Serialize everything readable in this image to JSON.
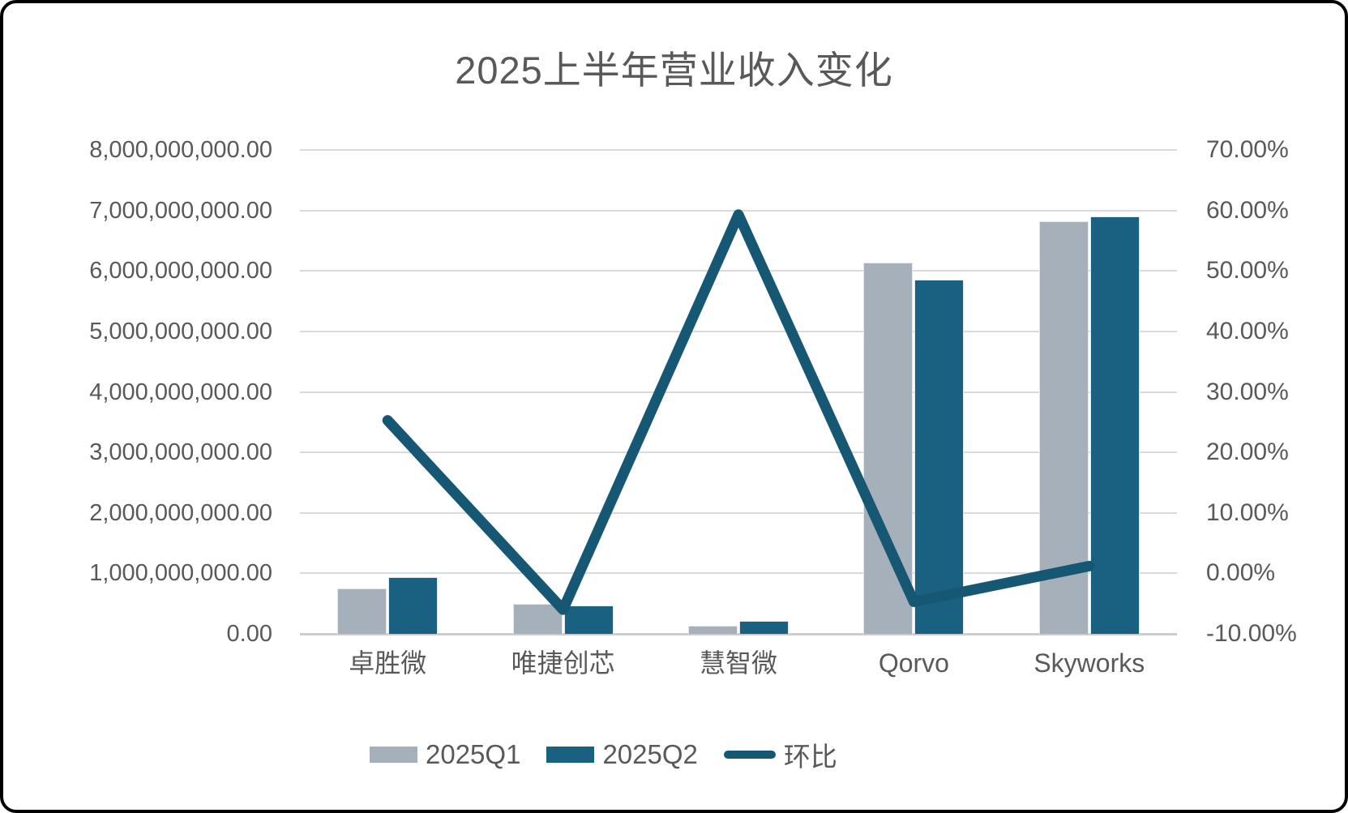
{
  "chart_data": {
    "type": "bar",
    "subtype": "combo-bar-line-dual-axis",
    "title": "2025上半年营业收入变化",
    "categories": [
      "卓胜微",
      "唯捷创芯",
      "慧智微",
      "Qorvo",
      "Skyworks"
    ],
    "series": [
      {
        "name": "2025Q1",
        "kind": "bar",
        "axis": "left",
        "color": "#A6B0BA",
        "values": [
          750000000,
          500000000,
          135000000,
          6140000000,
          6820000000
        ]
      },
      {
        "name": "2025Q2",
        "kind": "bar",
        "axis": "left",
        "color": "#1A6080",
        "values": [
          940000000,
          470000000,
          215000000,
          5850000000,
          6900000000
        ]
      },
      {
        "name": "环比",
        "kind": "line",
        "axis": "right",
        "color": "#165873",
        "values_percent": [
          25.3,
          -6.0,
          59.3,
          -4.7,
          1.2
        ]
      }
    ],
    "left_axis": {
      "min": 0,
      "max": 8000000000,
      "step": 1000000000,
      "tick_labels": [
        "8,000,000,000.00",
        "7,000,000,000.00",
        "6,000,000,000.00",
        "5,000,000,000.00",
        "4,000,000,000.00",
        "3,000,000,000.00",
        "2,000,000,000.00",
        "1,000,000,000.00",
        "0.00"
      ]
    },
    "right_axis": {
      "min": -10,
      "max": 70,
      "step": 10,
      "tick_labels": [
        "70.00%",
        "60.00%",
        "50.00%",
        "40.00%",
        "30.00%",
        "20.00%",
        "10.00%",
        "0.00%",
        "-10.00%"
      ]
    },
    "grid": "horizontal-on",
    "legend_position": "bottom",
    "colors": {
      "text": "#595959",
      "gridline": "#dadada",
      "axis_line": "#c9cdd1",
      "frame_border": "#000000"
    }
  }
}
